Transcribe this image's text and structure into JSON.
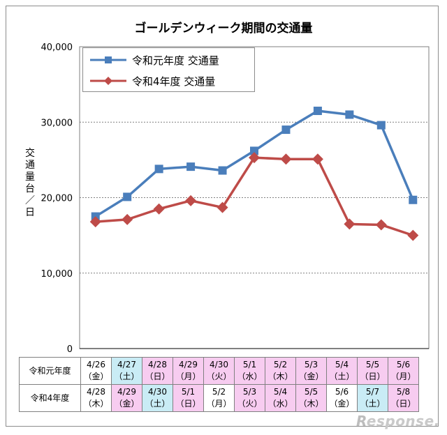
{
  "chart_data": {
    "type": "line",
    "title": "ゴールデンウィーク期間の交通量",
    "ylabel": "交通量（台/日）",
    "ylabel_chars": [
      "交",
      "通",
      "量",
      "台",
      "／",
      "日"
    ],
    "ylim": [
      0,
      40000
    ],
    "yticks": [
      0,
      10000,
      20000,
      30000,
      40000
    ],
    "ytick_labels": [
      "0",
      "10,000",
      "20,000",
      "30,000",
      "40,000"
    ],
    "grid": true,
    "legend_position": "top-left",
    "series": [
      {
        "name": "令和元年度 交通量",
        "color": "#4a7ebb",
        "marker": "square",
        "values": [
          17500,
          20100,
          23800,
          24100,
          23600,
          26200,
          29000,
          31500,
          31000,
          29600,
          19700
        ]
      },
      {
        "name": "令和4年度 交通量",
        "color": "#be4b48",
        "marker": "diamond",
        "values": [
          16800,
          17100,
          18500,
          19600,
          18700,
          25300,
          25100,
          25100,
          16500,
          16400,
          15000
        ]
      }
    ],
    "table": {
      "rows": [
        {
          "label": "令和元年度",
          "cells": [
            {
              "date": "4/26",
              "day": "（金）",
              "bg": "white"
            },
            {
              "date": "4/27",
              "day": "（土）",
              "bg": "blue"
            },
            {
              "date": "4/28",
              "day": "（日）",
              "bg": "pink"
            },
            {
              "date": "4/29",
              "day": "（月）",
              "bg": "pink"
            },
            {
              "date": "4/30",
              "day": "（火）",
              "bg": "pink"
            },
            {
              "date": "5/1",
              "day": "（水）",
              "bg": "pink"
            },
            {
              "date": "5/2",
              "day": "（木）",
              "bg": "pink"
            },
            {
              "date": "5/3",
              "day": "（金）",
              "bg": "pink"
            },
            {
              "date": "5/4",
              "day": "（土）",
              "bg": "pink"
            },
            {
              "date": "5/5",
              "day": "（日）",
              "bg": "pink"
            },
            {
              "date": "5/6",
              "day": "（月）",
              "bg": "pink"
            }
          ]
        },
        {
          "label": "令和4年度",
          "cells": [
            {
              "date": "4/28",
              "day": "（木）",
              "bg": "white"
            },
            {
              "date": "4/29",
              "day": "（金）",
              "bg": "pink"
            },
            {
              "date": "4/30",
              "day": "（土）",
              "bg": "blue"
            },
            {
              "date": "5/1",
              "day": "（日）",
              "bg": "pink"
            },
            {
              "date": "5/2",
              "day": "（月）",
              "bg": "white"
            },
            {
              "date": "5/3",
              "day": "（火）",
              "bg": "pink"
            },
            {
              "date": "5/4",
              "day": "（水）",
              "bg": "pink"
            },
            {
              "date": "5/5",
              "day": "（木）",
              "bg": "pink"
            },
            {
              "date": "5/6",
              "day": "（金）",
              "bg": "white"
            },
            {
              "date": "5/7",
              "day": "（土）",
              "bg": "blue"
            },
            {
              "date": "5/8",
              "day": "（日）",
              "bg": "pink"
            }
          ]
        }
      ]
    }
  },
  "watermark": {
    "text_main": "esponse.",
    "text_r": "R"
  }
}
